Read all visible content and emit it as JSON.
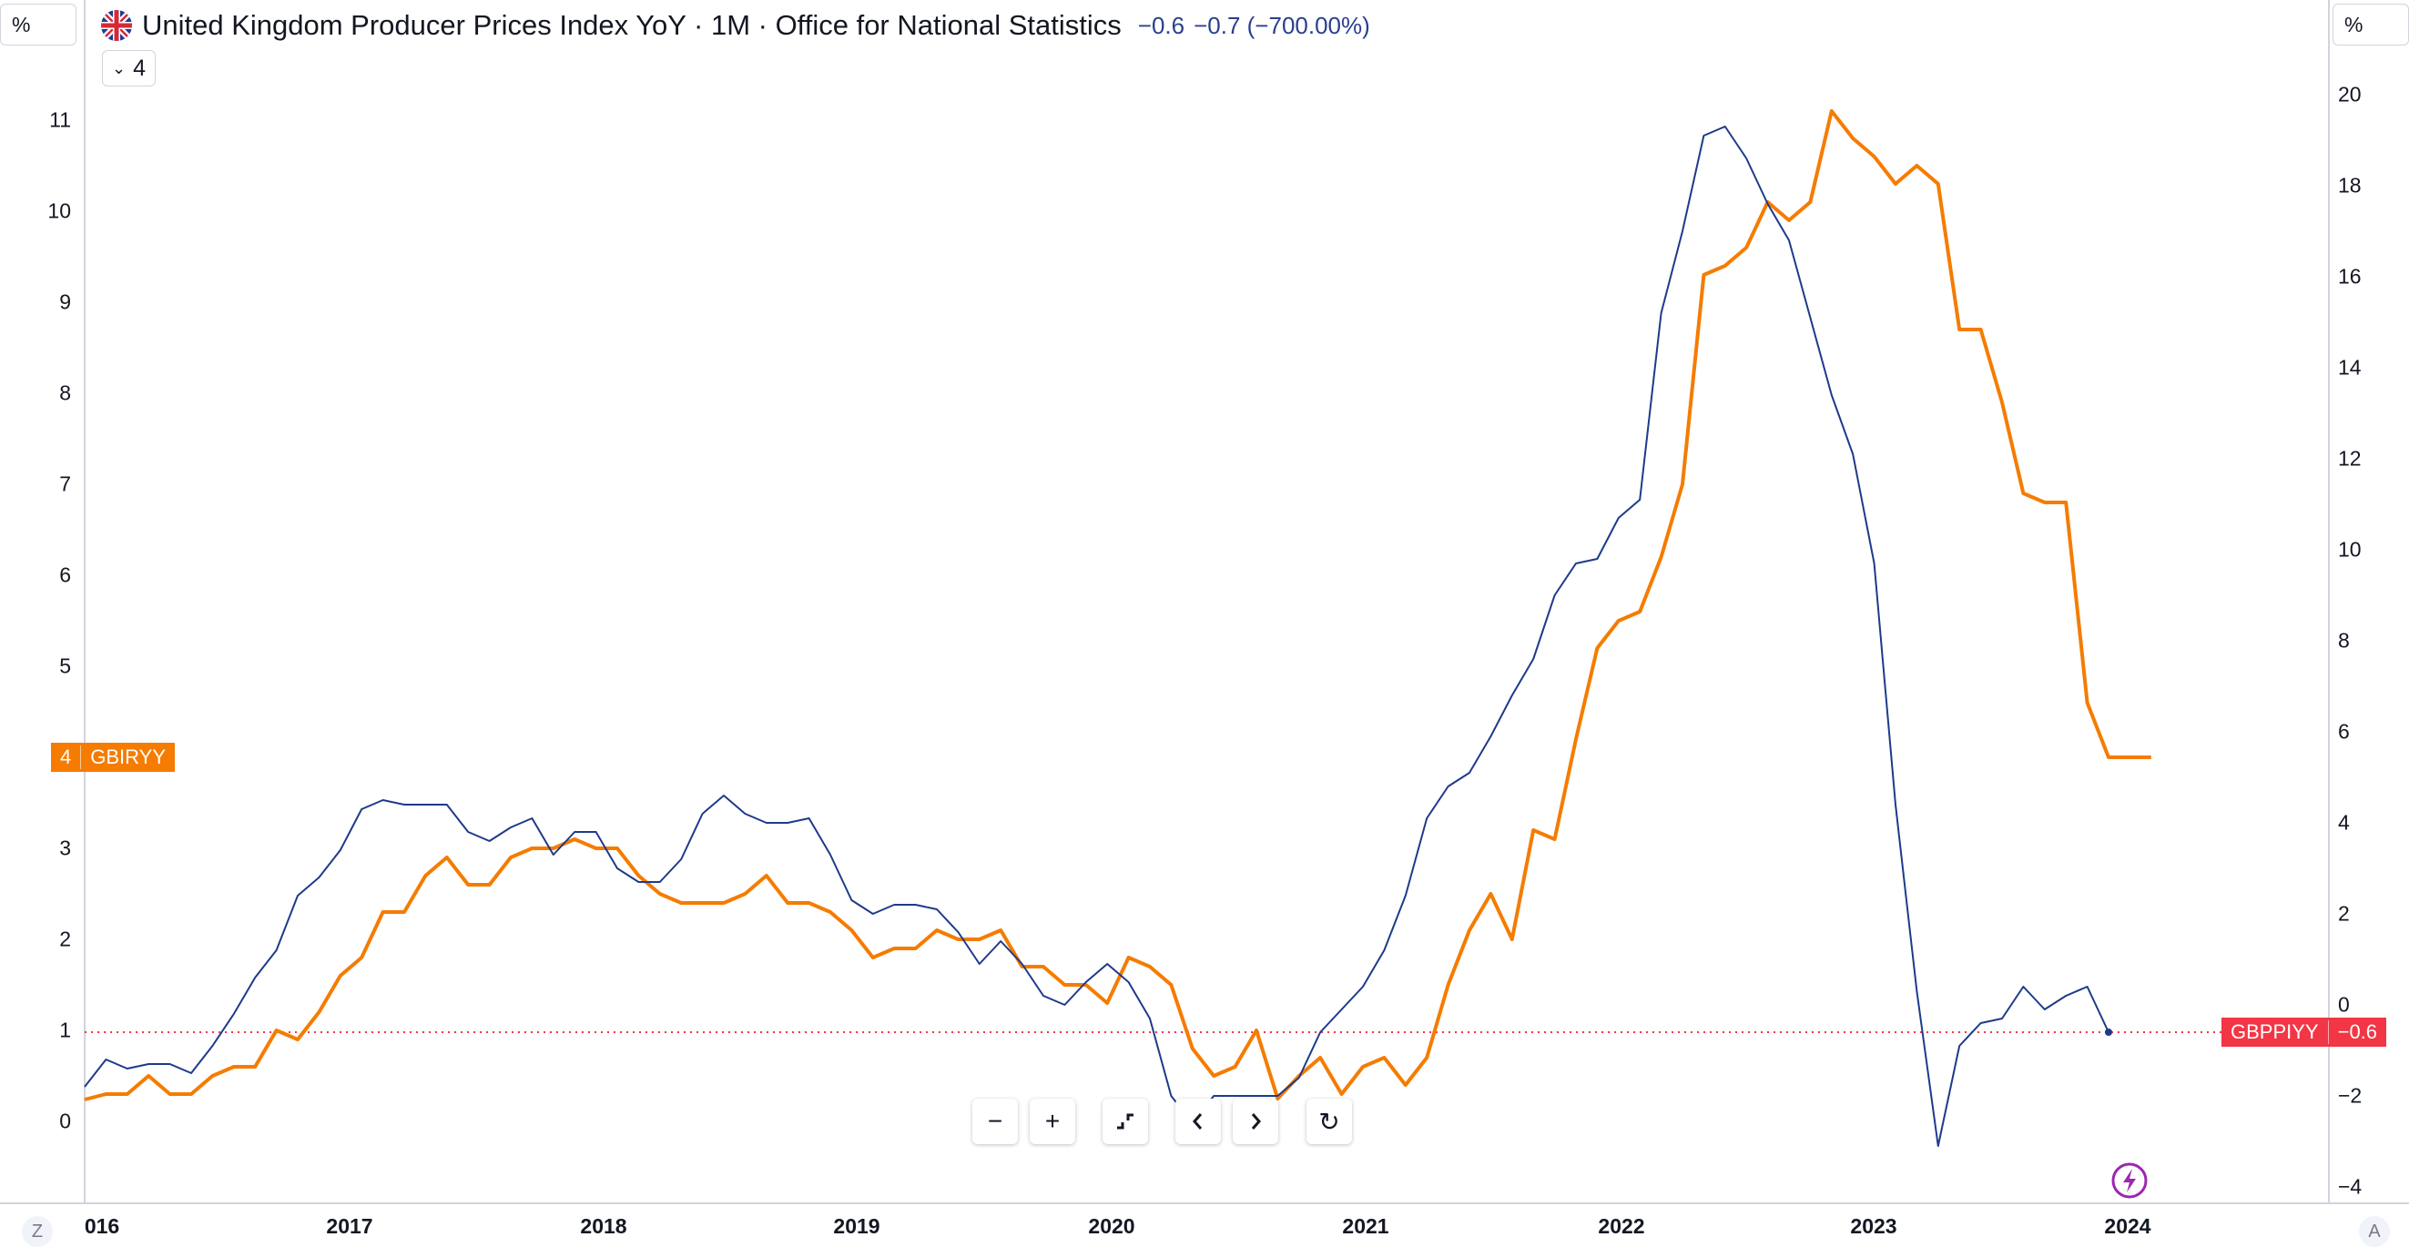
{
  "legend": {
    "title": "United Kingdom Producer Prices Index YoY · 1M · Office for National Statistics",
    "value": "−0.6",
    "change": "−0.7 (−700.00%)",
    "collapse_count": "4"
  },
  "scale_left_label": "%",
  "scale_right_label": "%",
  "nav": {
    "zoom_out": "−",
    "zoom_in": "+",
    "reset_label": "↻"
  },
  "corner_left": "Z",
  "corner_right": "A",
  "colors": {
    "blue": "#1e3a8a",
    "orange": "#f57c00",
    "red": "#f23645"
  },
  "chart_data": {
    "type": "line",
    "x_ticks": [
      "016",
      "2017",
      "2018",
      "2019",
      "2020",
      "2021",
      "2022",
      "2023",
      "2024"
    ],
    "y_left_ticks": [
      0,
      1,
      2,
      3,
      4,
      5,
      6,
      7,
      8,
      9,
      10,
      11
    ],
    "y_right_ticks": [
      -4,
      -2,
      0,
      2,
      4,
      6,
      8,
      10,
      12,
      14,
      16,
      18,
      20
    ],
    "y_left_range": [
      -0.4,
      11.6
    ],
    "y_right_range": [
      -4.6,
      20.8
    ],
    "x_range": [
      "2016-01",
      "2024-11"
    ],
    "reference_line": {
      "axis": "right",
      "value": -0.6
    },
    "series": [
      {
        "name": "GBIRYY",
        "axis": "left",
        "color": "#f57c00",
        "badge": "4",
        "points": [
          [
            "2016-01",
            0.24
          ],
          [
            "2016-02",
            0.3
          ],
          [
            "2016-03",
            0.3
          ],
          [
            "2016-04",
            0.5
          ],
          [
            "2016-05",
            0.3
          ],
          [
            "2016-06",
            0.3
          ],
          [
            "2016-07",
            0.5
          ],
          [
            "2016-08",
            0.6
          ],
          [
            "2016-09",
            0.6
          ],
          [
            "2016-10",
            1.0
          ],
          [
            "2016-11",
            0.9
          ],
          [
            "2016-12",
            1.2
          ],
          [
            "2017-01",
            1.6
          ],
          [
            "2017-02",
            1.8
          ],
          [
            "2017-03",
            2.3
          ],
          [
            "2017-04",
            2.3
          ],
          [
            "2017-05",
            2.7
          ],
          [
            "2017-06",
            2.9
          ],
          [
            "2017-07",
            2.6
          ],
          [
            "2017-08",
            2.6
          ],
          [
            "2017-09",
            2.9
          ],
          [
            "2017-10",
            3.0
          ],
          [
            "2017-11",
            3.0
          ],
          [
            "2017-12",
            3.1
          ],
          [
            "2018-01",
            3.0
          ],
          [
            "2018-02",
            3.0
          ],
          [
            "2018-03",
            2.7
          ],
          [
            "2018-04",
            2.5
          ],
          [
            "2018-05",
            2.4
          ],
          [
            "2018-06",
            2.4
          ],
          [
            "2018-07",
            2.4
          ],
          [
            "2018-08",
            2.5
          ],
          [
            "2018-09",
            2.7
          ],
          [
            "2018-10",
            2.4
          ],
          [
            "2018-11",
            2.4
          ],
          [
            "2018-12",
            2.3
          ],
          [
            "2019-01",
            2.1
          ],
          [
            "2019-02",
            1.8
          ],
          [
            "2019-03",
            1.9
          ],
          [
            "2019-04",
            1.9
          ],
          [
            "2019-05",
            2.1
          ],
          [
            "2019-06",
            2.0
          ],
          [
            "2019-07",
            2.0
          ],
          [
            "2019-08",
            2.1
          ],
          [
            "2019-09",
            1.7
          ],
          [
            "2019-10",
            1.7
          ],
          [
            "2019-11",
            1.5
          ],
          [
            "2019-12",
            1.5
          ],
          [
            "2020-01",
            1.3
          ],
          [
            "2020-02",
            1.8
          ],
          [
            "2020-03",
            1.7
          ],
          [
            "2020-04",
            1.5
          ],
          [
            "2020-05",
            0.8
          ],
          [
            "2020-06",
            0.5
          ],
          [
            "2020-07",
            0.6
          ],
          [
            "2020-08",
            1.0
          ],
          [
            "2020-09",
            0.25
          ],
          [
            "2020-10",
            0.5
          ],
          [
            "2020-11",
            0.7
          ],
          [
            "2020-12",
            0.3
          ],
          [
            "2021-01",
            0.6
          ],
          [
            "2021-02",
            0.7
          ],
          [
            "2021-03",
            0.4
          ],
          [
            "2021-04",
            0.7
          ],
          [
            "2021-05",
            1.5
          ],
          [
            "2021-06",
            2.1
          ],
          [
            "2021-07",
            2.5
          ],
          [
            "2021-08",
            2.0
          ],
          [
            "2021-09",
            3.2
          ],
          [
            "2021-10",
            3.1
          ],
          [
            "2021-11",
            4.2
          ],
          [
            "2021-12",
            5.2
          ],
          [
            "2022-01",
            5.5
          ],
          [
            "2022-02",
            5.6
          ],
          [
            "2022-03",
            6.2
          ],
          [
            "2022-04",
            7.0
          ],
          [
            "2022-05",
            9.3
          ],
          [
            "2022-06",
            9.4
          ],
          [
            "2022-07",
            9.6
          ],
          [
            "2022-08",
            10.1
          ],
          [
            "2022-09",
            9.9
          ],
          [
            "2022-10",
            10.1
          ],
          [
            "2022-11",
            11.1
          ],
          [
            "2022-12",
            10.8
          ],
          [
            "2023-01",
            10.6
          ],
          [
            "2023-02",
            10.3
          ],
          [
            "2023-03",
            10.5
          ],
          [
            "2023-04",
            10.3
          ],
          [
            "2023-05",
            8.7
          ],
          [
            "2023-06",
            8.7
          ],
          [
            "2023-07",
            7.9
          ],
          [
            "2023-08",
            6.9
          ],
          [
            "2023-09",
            6.8
          ],
          [
            "2023-10",
            6.8
          ],
          [
            "2023-11",
            4.6
          ],
          [
            "2023-12",
            4.0
          ],
          [
            "2024-01",
            4.0
          ],
          [
            "2024-02",
            4.0
          ]
        ]
      },
      {
        "name": "GBPPIYY",
        "axis": "right",
        "color": "#1e3a8a",
        "badge": "−0.6",
        "points": [
          [
            "2016-01",
            -1.8
          ],
          [
            "2016-02",
            -1.2
          ],
          [
            "2016-03",
            -1.4
          ],
          [
            "2016-04",
            -1.3
          ],
          [
            "2016-05",
            -1.3
          ],
          [
            "2016-06",
            -1.5
          ],
          [
            "2016-07",
            -0.9
          ],
          [
            "2016-08",
            -0.2
          ],
          [
            "2016-09",
            0.6
          ],
          [
            "2016-10",
            1.2
          ],
          [
            "2016-11",
            2.4
          ],
          [
            "2016-12",
            2.8
          ],
          [
            "2017-01",
            3.4
          ],
          [
            "2017-02",
            4.3
          ],
          [
            "2017-03",
            4.5
          ],
          [
            "2017-04",
            4.4
          ],
          [
            "2017-05",
            4.4
          ],
          [
            "2017-06",
            4.4
          ],
          [
            "2017-07",
            3.8
          ],
          [
            "2017-08",
            3.6
          ],
          [
            "2017-09",
            3.9
          ],
          [
            "2017-10",
            4.1
          ],
          [
            "2017-11",
            3.3
          ],
          [
            "2017-12",
            3.8
          ],
          [
            "2018-01",
            3.8
          ],
          [
            "2018-02",
            3.0
          ],
          [
            "2018-03",
            2.7
          ],
          [
            "2018-04",
            2.7
          ],
          [
            "2018-05",
            3.2
          ],
          [
            "2018-06",
            4.2
          ],
          [
            "2018-07",
            4.6
          ],
          [
            "2018-08",
            4.2
          ],
          [
            "2018-09",
            4.0
          ],
          [
            "2018-10",
            4.0
          ],
          [
            "2018-11",
            4.1
          ],
          [
            "2018-12",
            3.3
          ],
          [
            "2019-01",
            2.3
          ],
          [
            "2019-02",
            2.0
          ],
          [
            "2019-03",
            2.2
          ],
          [
            "2019-04",
            2.2
          ],
          [
            "2019-05",
            2.1
          ],
          [
            "2019-06",
            1.6
          ],
          [
            "2019-07",
            0.9
          ],
          [
            "2019-08",
            1.4
          ],
          [
            "2019-09",
            0.9
          ],
          [
            "2019-10",
            0.2
          ],
          [
            "2019-11",
            0.0
          ],
          [
            "2019-12",
            0.5
          ],
          [
            "2020-01",
            0.9
          ],
          [
            "2020-02",
            0.5
          ],
          [
            "2020-03",
            -0.3
          ],
          [
            "2020-04",
            -2.0
          ],
          [
            "2020-05",
            -2.6
          ],
          [
            "2020-06",
            -2.0
          ],
          [
            "2020-07",
            -2.0
          ],
          [
            "2020-08",
            -2.0
          ],
          [
            "2020-09",
            -2.0
          ],
          [
            "2020-10",
            -1.6
          ],
          [
            "2020-11",
            -0.6
          ],
          [
            "2020-12",
            -0.1
          ],
          [
            "2021-01",
            0.4
          ],
          [
            "2021-02",
            1.2
          ],
          [
            "2021-03",
            2.4
          ],
          [
            "2021-04",
            4.1
          ],
          [
            "2021-05",
            4.8
          ],
          [
            "2021-06",
            5.1
          ],
          [
            "2021-07",
            5.9
          ],
          [
            "2021-08",
            6.8
          ],
          [
            "2021-09",
            7.6
          ],
          [
            "2021-10",
            9.0
          ],
          [
            "2021-11",
            9.7
          ],
          [
            "2021-12",
            9.8
          ],
          [
            "2022-01",
            10.7
          ],
          [
            "2022-02",
            11.1
          ],
          [
            "2022-03",
            15.2
          ],
          [
            "2022-04",
            17.0
          ],
          [
            "2022-05",
            19.1
          ],
          [
            "2022-06",
            19.3
          ],
          [
            "2022-07",
            18.6
          ],
          [
            "2022-08",
            17.6
          ],
          [
            "2022-09",
            16.8
          ],
          [
            "2022-10",
            15.1
          ],
          [
            "2022-11",
            13.4
          ],
          [
            "2022-12",
            12.1
          ],
          [
            "2023-01",
            9.7
          ],
          [
            "2023-02",
            4.4
          ],
          [
            "2023-03",
            0.3
          ],
          [
            "2023-04",
            -3.1
          ],
          [
            "2023-05",
            -0.9
          ],
          [
            "2023-06",
            -0.4
          ],
          [
            "2023-07",
            -0.3
          ],
          [
            "2023-08",
            0.4
          ],
          [
            "2023-09",
            -0.1
          ],
          [
            "2023-10",
            0.2
          ],
          [
            "2023-11",
            0.4
          ],
          [
            "2023-12",
            -0.6
          ]
        ]
      }
    ]
  }
}
